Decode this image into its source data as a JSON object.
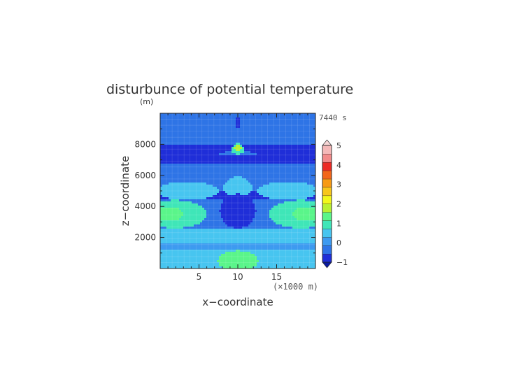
{
  "chart_data": {
    "type": "heatmap",
    "title": "disturbunce of potential temperature",
    "unit_label": "(m)",
    "time_label": "7440 s",
    "xlabel": "x−coordinate",
    "x_unit_label": "(×1000 m)",
    "ylabel": "z−coordinate",
    "xlim": [
      0,
      20
    ],
    "ylim": [
      0,
      10000
    ],
    "x_ticks": [
      5,
      10,
      15
    ],
    "x_tick_labels": [
      "5",
      "10",
      "15"
    ],
    "y_ticks": [
      2000,
      4000,
      6000,
      8000
    ],
    "y_tick_labels": [
      "2000",
      "4000",
      "6000",
      "8000"
    ],
    "grid": true,
    "colorbar": {
      "min": -1,
      "max": 5,
      "step": 0.5,
      "tick_values": [
        -1,
        0,
        1,
        2,
        3,
        4,
        5
      ],
      "tick_labels": [
        "−1",
        "0",
        "1",
        "2",
        "3",
        "4",
        "5"
      ],
      "colors": [
        "#1f2ed8",
        "#2e74e6",
        "#3d9af0",
        "#47c5f0",
        "#3fe6b8",
        "#5af58a",
        "#b9f032",
        "#f2f71c",
        "#f7c61c",
        "#f79a14",
        "#f2661a",
        "#ec2a24",
        "#f28a8a",
        "#f4b8b8"
      ],
      "over_color": "#f6d6d6",
      "under_color": "#0a1a9e"
    },
    "fields": {
      "background": -0.3,
      "features": [
        {
          "kind": "band",
          "zmin": 6700,
          "zmax": 7300,
          "value": -0.9
        },
        {
          "kind": "band",
          "zmin": 7300,
          "zmax": 8000,
          "value": -0.7,
          "dip_center": 10,
          "dip_width": 3
        },
        {
          "kind": "band",
          "zmin": 6000,
          "zmax": 6700,
          "value": -0.5
        },
        {
          "kind": "band",
          "zmin": 4400,
          "zmax": 5000,
          "value": -0.6
        },
        {
          "kind": "band",
          "zmin": 1600,
          "zmax": 2600,
          "value": 0.6
        },
        {
          "kind": "band",
          "zmin": 1200,
          "zmax": 1600,
          "value": 0.2
        },
        {
          "kind": "band",
          "zmin": 0,
          "zmax": 1200,
          "value": 0.9
        },
        {
          "kind": "blob",
          "x": 3.5,
          "z": 5000,
          "rx": 4,
          "rz": 600,
          "value": 0.7
        },
        {
          "kind": "blob",
          "x": 16.5,
          "z": 5000,
          "rx": 4,
          "rz": 600,
          "value": 0.7
        },
        {
          "kind": "blob",
          "x": 10,
          "z": 5200,
          "rx": 1.8,
          "rz": 700,
          "value": 0.6
        },
        {
          "kind": "blob",
          "x": 2,
          "z": 3500,
          "rx": 4,
          "rz": 900,
          "value": 1.1
        },
        {
          "kind": "blob",
          "x": 18,
          "z": 3500,
          "rx": 4,
          "rz": 900,
          "value": 1.1
        },
        {
          "kind": "blob",
          "x": 1.2,
          "z": 3500,
          "rx": 1.8,
          "rz": 450,
          "value": 1.7
        },
        {
          "kind": "blob",
          "x": 18.8,
          "z": 3500,
          "rx": 1.8,
          "rz": 450,
          "value": 1.7
        },
        {
          "kind": "blob",
          "x": 10,
          "z": 3700,
          "rx": 2.3,
          "rz": 1100,
          "value": -0.7
        },
        {
          "kind": "blob",
          "x": 10,
          "z": 500,
          "rx": 2.6,
          "rz": 650,
          "value": 1.7
        },
        {
          "kind": "blob",
          "x": 10,
          "z": 7700,
          "rx": 0.8,
          "rz": 380,
          "value": 1.0
        },
        {
          "kind": "blob",
          "x": 10,
          "z": 7750,
          "rx": 0.45,
          "rz": 200,
          "value": 2.4
        },
        {
          "kind": "blob",
          "x": 10,
          "z": 9400,
          "rx": 0.35,
          "rz": 350,
          "value": -0.95
        }
      ]
    }
  }
}
